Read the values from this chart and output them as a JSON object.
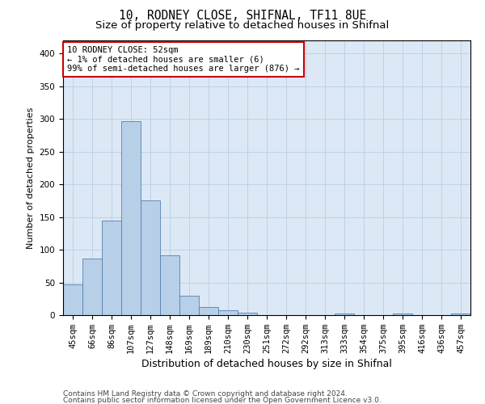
{
  "title1": "10, RODNEY CLOSE, SHIFNAL, TF11 8UE",
  "title2": "Size of property relative to detached houses in Shifnal",
  "xlabel": "Distribution of detached houses by size in Shifnal",
  "ylabel": "Number of detached properties",
  "categories": [
    "45sqm",
    "66sqm",
    "86sqm",
    "107sqm",
    "127sqm",
    "148sqm",
    "169sqm",
    "189sqm",
    "210sqm",
    "230sqm",
    "251sqm",
    "272sqm",
    "292sqm",
    "313sqm",
    "333sqm",
    "354sqm",
    "375sqm",
    "395sqm",
    "416sqm",
    "436sqm",
    "457sqm"
  ],
  "bar_values": [
    47,
    87,
    144,
    296,
    175,
    91,
    30,
    12,
    7,
    4,
    0,
    0,
    0,
    0,
    3,
    0,
    0,
    3,
    0,
    0,
    3
  ],
  "bar_color": "#b8cfe8",
  "bar_edge_color": "#5580b0",
  "ylim": [
    0,
    420
  ],
  "yticks": [
    0,
    50,
    100,
    150,
    200,
    250,
    300,
    350,
    400
  ],
  "annotation_box_text": "10 RODNEY CLOSE: 52sqm\n← 1% of detached houses are smaller (6)\n99% of semi-detached houses are larger (876) →",
  "annotation_box_color": "#cc0000",
  "annotation_box_fill": "#ffffff",
  "footer1": "Contains HM Land Registry data © Crown copyright and database right 2024.",
  "footer2": "Contains public sector information licensed under the Open Government Licence v3.0.",
  "bg_color": "#ffffff",
  "plot_bg_color": "#dce8f5",
  "grid_color": "#b8cfe0",
  "title1_fontsize": 10.5,
  "title2_fontsize": 9.5,
  "xlabel_fontsize": 9,
  "ylabel_fontsize": 8,
  "tick_fontsize": 7.5,
  "ann_fontsize": 7.5,
  "footer_fontsize": 6.5
}
